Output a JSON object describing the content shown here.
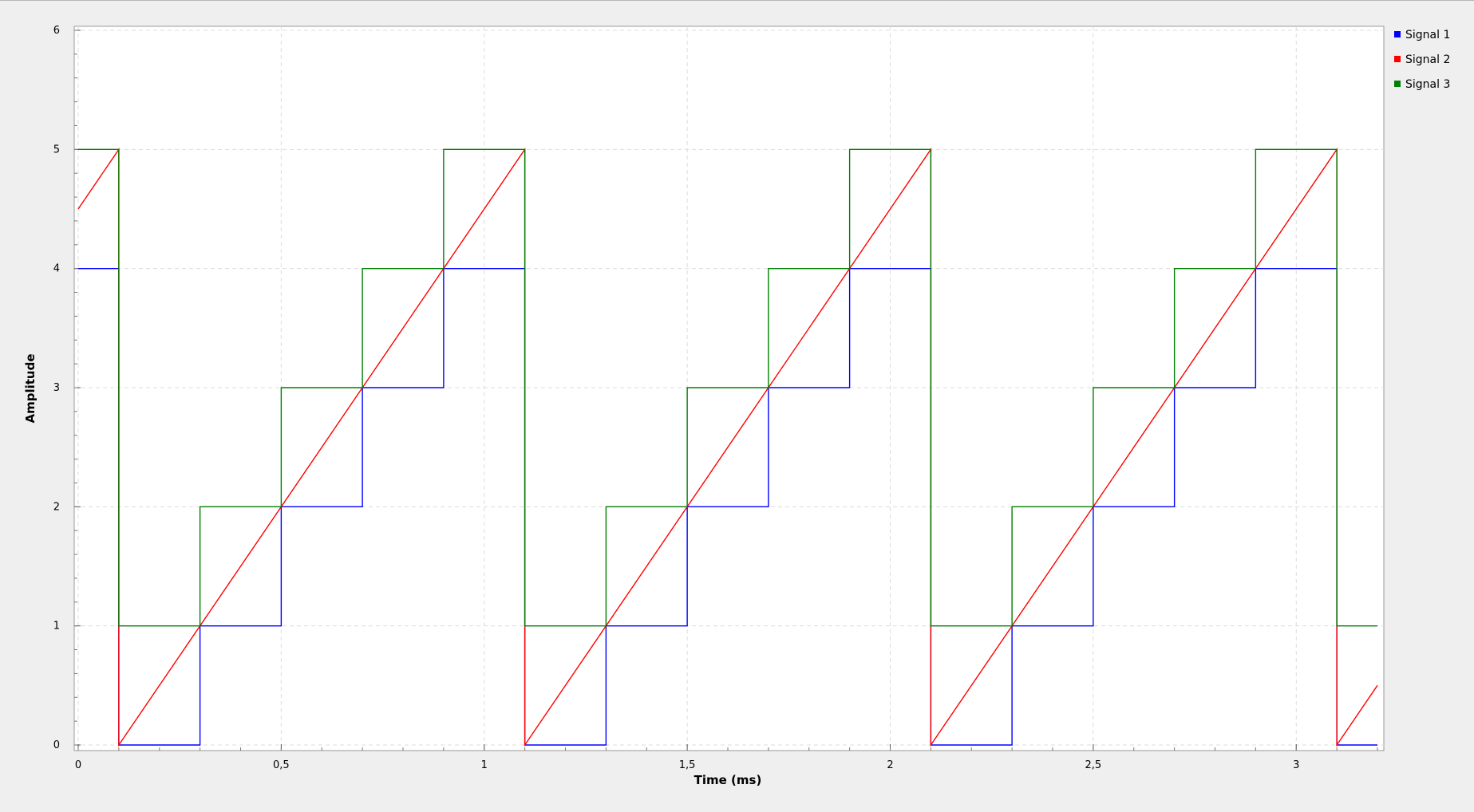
{
  "chart_data": {
    "type": "line",
    "title": "",
    "xlabel": "Time (ms)",
    "ylabel": "Amplitude",
    "xlim": [
      0,
      3.2
    ],
    "ylim": [
      0,
      6
    ],
    "x_ticks": [
      0,
      0.5,
      1,
      1.5,
      2,
      2.5,
      3
    ],
    "x_tick_labels": [
      "0",
      "0,5",
      "1",
      "1,5",
      "2",
      "2,5",
      "3"
    ],
    "y_ticks": [
      0,
      1,
      2,
      3,
      4,
      5,
      6
    ],
    "y_tick_labels": [
      "0",
      "1",
      "2",
      "3",
      "4",
      "5",
      "6"
    ],
    "grid": true,
    "legend_position": "right",
    "series": [
      {
        "name": "Signal 1",
        "color": "#0000ff",
        "x": [
          0,
          0.1,
          0.1,
          0.3,
          0.3,
          0.5,
          0.5,
          0.7,
          0.7,
          0.9,
          0.9,
          1.1,
          1.1,
          1.3,
          1.3,
          1.5,
          1.5,
          1.7,
          1.7,
          1.9,
          1.9,
          2.1,
          2.1,
          2.3,
          2.3,
          2.5,
          2.5,
          2.7,
          2.7,
          2.9,
          2.9,
          3.1,
          3.1,
          3.2
        ],
        "y": [
          4,
          4,
          0,
          0,
          1,
          1,
          2,
          2,
          3,
          3,
          4,
          4,
          0,
          0,
          1,
          1,
          2,
          2,
          3,
          3,
          4,
          4,
          0,
          0,
          1,
          1,
          2,
          2,
          3,
          3,
          4,
          4,
          0,
          0
        ]
      },
      {
        "name": "Signal 2",
        "color": "#ff0000",
        "x": [
          0,
          0.1,
          0.1,
          1.1,
          1.1,
          2.1,
          2.1,
          3.1,
          3.1,
          3.2
        ],
        "y": [
          4.5,
          5,
          0,
          5,
          0,
          5,
          0,
          5,
          0,
          0.5
        ]
      },
      {
        "name": "Signal 3",
        "color": "#008000",
        "x": [
          0,
          0.1,
          0.1,
          0.3,
          0.3,
          0.5,
          0.5,
          0.7,
          0.7,
          0.9,
          0.9,
          1.1,
          1.1,
          1.3,
          1.3,
          1.5,
          1.5,
          1.7,
          1.7,
          1.9,
          1.9,
          2.1,
          2.1,
          2.3,
          2.3,
          2.5,
          2.5,
          2.7,
          2.7,
          2.9,
          2.9,
          3.1,
          3.1,
          3.2
        ],
        "y": [
          5,
          5,
          1,
          1,
          2,
          2,
          3,
          3,
          4,
          4,
          5,
          5,
          1,
          1,
          2,
          2,
          3,
          3,
          4,
          4,
          5,
          5,
          1,
          1,
          2,
          2,
          3,
          3,
          4,
          4,
          5,
          5,
          1,
          1
        ]
      }
    ]
  }
}
